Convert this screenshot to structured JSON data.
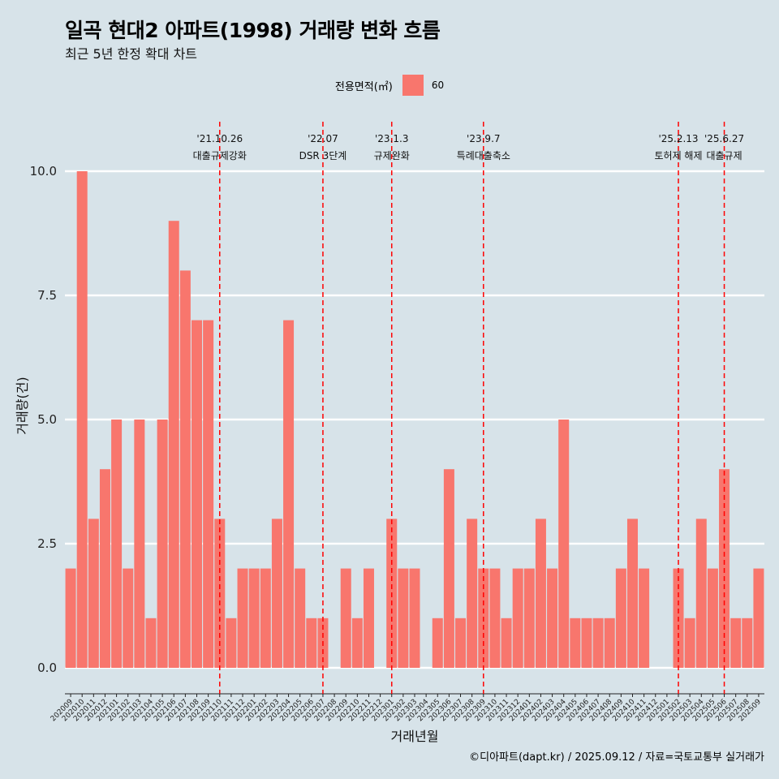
{
  "title": "일곡 현대2 아파트(1998) 거래량 변화 흐름",
  "subtitle": "최근 5년 한정 확대 차트",
  "legend": {
    "title": "전용면적(㎡)",
    "label": "60"
  },
  "caption": "©디아파트(dapt.kr) / 2025.09.12 / 자료=국토교통부 실거래가",
  "colors": {
    "bar": "#f8766d",
    "background": "#d7e3e9",
    "grid": "#ffffff",
    "event_line": "#ff0000"
  },
  "chart_data": {
    "type": "bar",
    "xlabel": "거래년월",
    "ylabel": "거래량(건)",
    "ylim": [
      0,
      10
    ],
    "yticks": [
      "0.0",
      "2.5",
      "5.0",
      "7.5",
      "10.0"
    ],
    "grid": true,
    "legend_position": "top",
    "series": [
      {
        "name": "60"
      }
    ],
    "categories": [
      "202009",
      "202010",
      "202011",
      "202012",
      "202101",
      "202102",
      "202103",
      "202104",
      "202105",
      "202106",
      "202107",
      "202108",
      "202109",
      "202110",
      "202111",
      "202112",
      "202201",
      "202202",
      "202203",
      "202204",
      "202205",
      "202206",
      "202207",
      "202208",
      "202209",
      "202210",
      "202211",
      "202212",
      "202301",
      "202302",
      "202303",
      "202304",
      "202305",
      "202306",
      "202307",
      "202308",
      "202309",
      "202310",
      "202311",
      "202312",
      "202401",
      "202402",
      "202403",
      "202404",
      "202405",
      "202406",
      "202407",
      "202408",
      "202409",
      "202410",
      "202411",
      "202412",
      "202501",
      "202502",
      "202503",
      "202504",
      "202505",
      "202506",
      "202507",
      "202508",
      "202509"
    ],
    "values": [
      2,
      10,
      3,
      4,
      5,
      2,
      5,
      1,
      5,
      9,
      8,
      7,
      7,
      3,
      1,
      2,
      2,
      2,
      3,
      7,
      2,
      1,
      1,
      0,
      2,
      1,
      2,
      0,
      3,
      2,
      2,
      0,
      1,
      4,
      1,
      3,
      2,
      2,
      1,
      2,
      2,
      3,
      2,
      5,
      1,
      1,
      1,
      1,
      2,
      3,
      2,
      0,
      0,
      2,
      1,
      3,
      2,
      4,
      1,
      1,
      2
    ],
    "annotations": [
      {
        "date": "'21.10.26",
        "label": "대출규제강화",
        "category": "202110"
      },
      {
        "date": "'22.07",
        "label": "DSR 3단계",
        "category": "202207"
      },
      {
        "date": "'23.1.3",
        "label": "규제완화",
        "category": "202301"
      },
      {
        "date": "'23.9.7",
        "label": "특례대출축소",
        "category": "202309"
      },
      {
        "date": "'25.2.13",
        "label": "토허제 해제",
        "category": "202502"
      },
      {
        "date": "'25.6.27",
        "label": "대출규제",
        "category": "202506"
      }
    ]
  }
}
